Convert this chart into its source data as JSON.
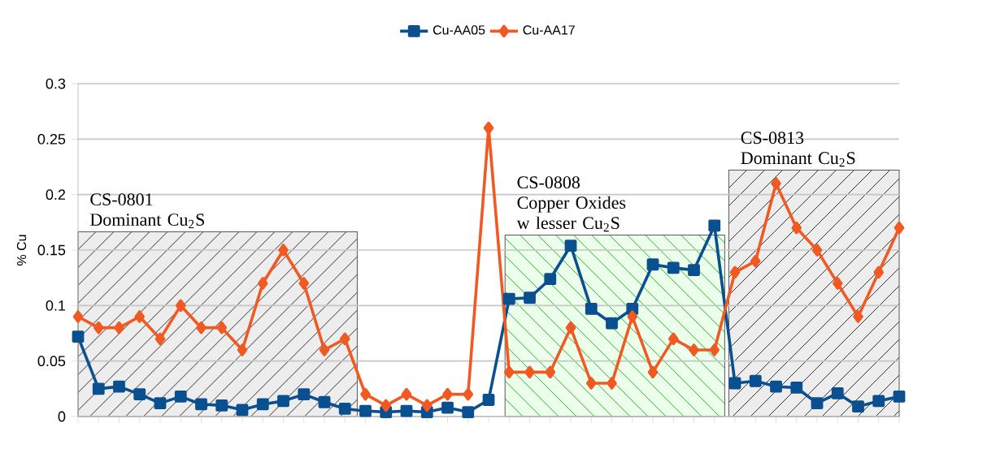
{
  "chart_data": {
    "type": "line",
    "ylabel": "% Cu",
    "categories": [
      null,
      null,
      null,
      null,
      null,
      null,
      null,
      null,
      null,
      null,
      null,
      null,
      null,
      null,
      null,
      null,
      null,
      null,
      null,
      null,
      null,
      null,
      null,
      null,
      null,
      null,
      null,
      null,
      null,
      null,
      null,
      null,
      null,
      null,
      null,
      null,
      null,
      null,
      null,
      null,
      null
    ],
    "series": [
      {
        "name": "Cu-AA05",
        "color": "#0a4f8f",
        "marker": "square",
        "values": [
          0.072,
          0.025,
          0.027,
          0.02,
          0.012,
          0.018,
          0.011,
          0.01,
          0.006,
          0.011,
          0.014,
          0.02,
          0.013,
          0.007,
          0.005,
          0.004,
          0.005,
          0.004,
          0.008,
          0.004,
          0.015,
          0.106,
          0.107,
          0.124,
          0.154,
          0.097,
          0.084,
          0.097,
          0.137,
          0.134,
          0.132,
          0.172,
          0.03,
          0.032,
          0.027,
          0.026,
          0.012,
          0.021,
          0.009,
          0.014,
          0.018
        ]
      },
      {
        "name": "Cu-AA17",
        "color": "#f05a22",
        "marker": "diamond",
        "values": [
          0.09,
          0.08,
          0.08,
          0.09,
          0.07,
          0.1,
          0.08,
          0.08,
          0.06,
          0.12,
          0.15,
          0.12,
          0.06,
          0.07,
          0.02,
          0.01,
          0.02,
          0.01,
          0.02,
          0.02,
          0.26,
          0.04,
          0.04,
          0.04,
          0.08,
          0.03,
          0.03,
          0.09,
          0.04,
          0.07,
          0.06,
          0.06,
          0.13,
          0.14,
          0.21,
          0.17,
          0.15,
          0.12,
          0.09,
          0.13,
          0.17
        ]
      }
    ],
    "ylim": [
      0,
      0.3
    ],
    "yticks": [
      0,
      0.05,
      0.1,
      0.15,
      0.2,
      0.25,
      0.3
    ],
    "annotations": [
      "CS-0801 Dominant Cu$_{2}$S",
      "CS-0808 Copper Oxides w lesser Cu$_{2}$S",
      "CS-0813 Dominant Cu$_{2}$S"
    ],
    "grid": "y",
    "legend": "top",
    "tick_labels": "y",
    "line_style": "solid"
  }
}
